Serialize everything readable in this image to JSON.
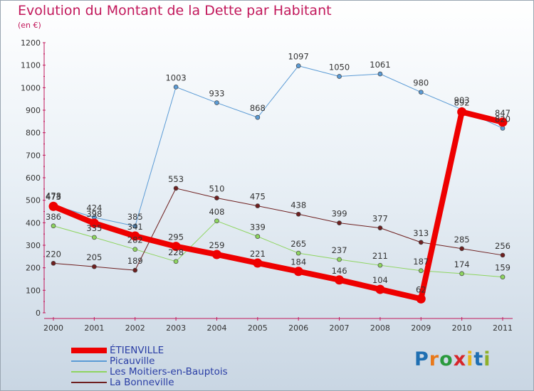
{
  "title": "Evolution du Montant de la Dette par Habitant",
  "subtitle": "(en €)",
  "logo": {
    "text": "Proxiti",
    "letter_colors": [
      "#1f6fb2",
      "#e8791b",
      "#2a9a3d",
      "#d6262a",
      "#e8b51b",
      "#1f6fb2",
      "#8fb02a"
    ]
  },
  "chart_data": {
    "type": "line",
    "title": "Evolution du Montant de la Dette par Habitant",
    "subtitle": "(en €)",
    "x": [
      "2000",
      "2001",
      "2002",
      "2003",
      "2004",
      "2005",
      "2006",
      "2007",
      "2008",
      "2009",
      "2010",
      "2011"
    ],
    "ylim": [
      0,
      1200
    ],
    "yticks": [
      0,
      100,
      200,
      300,
      400,
      500,
      600,
      700,
      800,
      900,
      1000,
      1100,
      1200
    ],
    "grid": false,
    "legend_position": "bottom-left",
    "series": [
      {
        "name": "ÉTIENVILLE",
        "color": "#ee0000",
        "width": 8,
        "marker_r": 6.5,
        "values": [
          473,
          398,
          341,
          295,
          259,
          221,
          184,
          146,
          104,
          62,
          892,
          847
        ]
      },
      {
        "name": "Picauville",
        "color": "#5b9bd5",
        "width": 1,
        "marker_r": 3,
        "values": [
          478,
          424,
          385,
          1003,
          933,
          868,
          1097,
          1050,
          1061,
          980,
          903,
          820
        ]
      },
      {
        "name": "Les Moitiers-en-Bauptois",
        "color": "#8ed55f",
        "width": 1,
        "marker_r": 3,
        "values": [
          386,
          335,
          282,
          228,
          408,
          339,
          265,
          237,
          211,
          187,
          174,
          159
        ]
      },
      {
        "name": "La Bonneville",
        "color": "#6e1f1f",
        "width": 1,
        "marker_r": 3,
        "values": [
          220,
          205,
          189,
          553,
          510,
          475,
          438,
          399,
          377,
          313,
          285,
          256
        ]
      }
    ]
  }
}
